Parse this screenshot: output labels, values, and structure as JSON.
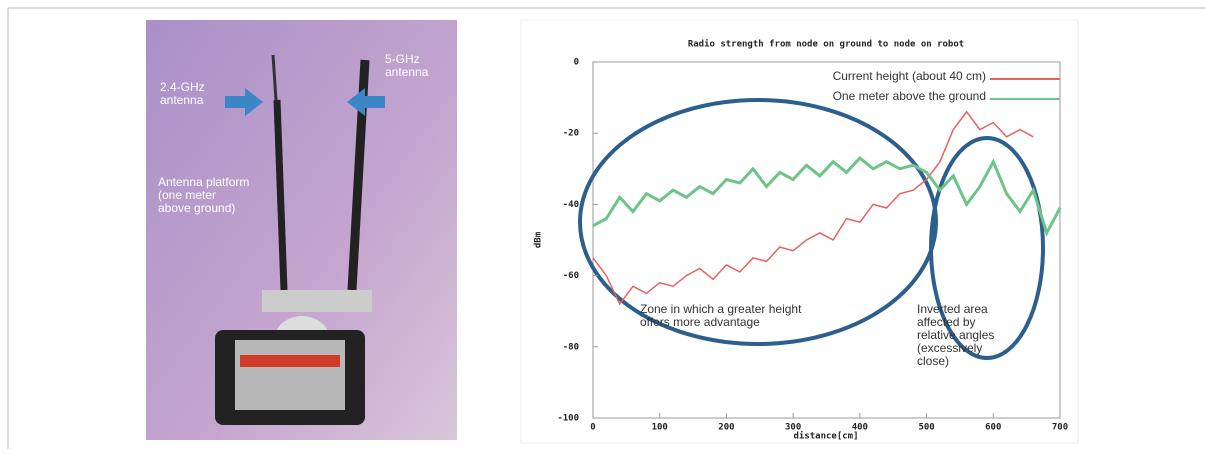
{
  "photo": {
    "labels": [
      [
        "2.4-GHz",
        "antenna"
      ],
      [
        "5-GHz",
        "antenna"
      ],
      [
        "Antenna platform",
        "(one meter",
        "above ground)"
      ]
    ]
  },
  "chart_data": {
    "type": "line",
    "title": "Radio strength from node on ground to node on robot",
    "x_label": "distance[cm]",
    "y_label": "dBm",
    "x": [
      0,
      20,
      40,
      60,
      80,
      100,
      120,
      140,
      160,
      180,
      200,
      220,
      240,
      260,
      280,
      300,
      320,
      340,
      360,
      380,
      400,
      420,
      440,
      460,
      480,
      500,
      520,
      540,
      560,
      580,
      600,
      620,
      640,
      660,
      680,
      700
    ],
    "series": [
      {
        "name": "Current height (about 40 cm)",
        "color": "#e8615f",
        "values": [
          -55,
          -60,
          -68,
          -63,
          -65,
          -62,
          -63,
          -60,
          -58,
          -61,
          -57,
          -59,
          -55,
          -56,
          -52,
          -53,
          -50,
          -48,
          -50,
          -44,
          -45,
          -40,
          -41,
          -37,
          -36,
          -33,
          -28,
          -19,
          -14,
          -19,
          -17,
          -21,
          -19,
          -21,
          null,
          null
        ]
      },
      {
        "name": "One meter above the ground",
        "color": "#6cc487",
        "values": [
          -46,
          -44,
          -38,
          -42,
          -37,
          -39,
          -36,
          -38,
          -35,
          -37,
          -33,
          -34,
          -30,
          -35,
          -31,
          -33,
          -29,
          -32,
          -28,
          -31,
          -27,
          -30,
          -28,
          -30,
          -29,
          -31,
          -36,
          -32,
          -40,
          -35,
          -28,
          -37,
          -42,
          -36,
          -48,
          -41
        ]
      }
    ],
    "xlim": [
      0,
      700
    ],
    "xticks": [
      0,
      100,
      200,
      300,
      400,
      500,
      600,
      700
    ],
    "ylim": [
      -100,
      0
    ],
    "yticks": [
      0,
      -20,
      -40,
      -60,
      -80,
      -100
    ],
    "annotations": [
      [
        "Zone in which a greater height",
        "offers more advantage"
      ],
      [
        "Inverted area",
        "affected by",
        "relative angles",
        "(excessively",
        "close)"
      ]
    ]
  }
}
